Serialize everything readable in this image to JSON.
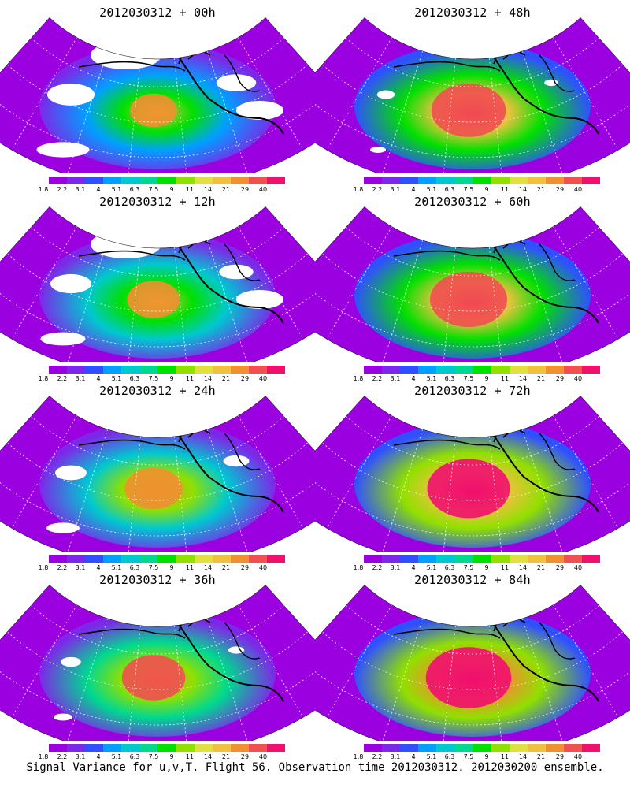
{
  "panels": [
    {
      "title": "2012030312 + 00h"
    },
    {
      "title": "2012030312 + 48h"
    },
    {
      "title": "2012030312 + 12h"
    },
    {
      "title": "2012030312 + 60h"
    },
    {
      "title": "2012030312 + 24h"
    },
    {
      "title": "2012030312 + 72h"
    },
    {
      "title": "2012030312 + 36h"
    },
    {
      "title": "2012030312 + 84h"
    }
  ],
  "colorbar": {
    "labels": [
      "1.8",
      "2.2",
      "3.1",
      "4",
      "5.1",
      "6.3",
      "7.5",
      "9",
      "11",
      "14",
      "21",
      "29",
      "40"
    ],
    "colors": [
      "#9b00e0",
      "#7d28e8",
      "#3050ff",
      "#00a0ff",
      "#00c8d0",
      "#00d890",
      "#00e000",
      "#90e000",
      "#e0e040",
      "#f0c040",
      "#f09030",
      "#f05050",
      "#f0106e"
    ]
  },
  "caption": "Signal Variance for u,v,T. Flight 56. Observation time 2012030312. 2012030200 ensemble."
}
